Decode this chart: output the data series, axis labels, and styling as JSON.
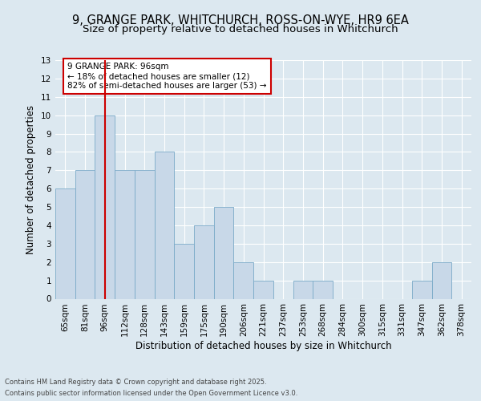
{
  "title_line1": "9, GRANGE PARK, WHITCHURCH, ROSS-ON-WYE, HR9 6EA",
  "title_line2": "Size of property relative to detached houses in Whitchurch",
  "xlabel": "Distribution of detached houses by size in Whitchurch",
  "ylabel": "Number of detached properties",
  "categories": [
    "65sqm",
    "81sqm",
    "96sqm",
    "112sqm",
    "128sqm",
    "143sqm",
    "159sqm",
    "175sqm",
    "190sqm",
    "206sqm",
    "221sqm",
    "237sqm",
    "253sqm",
    "268sqm",
    "284sqm",
    "300sqm",
    "315sqm",
    "331sqm",
    "347sqm",
    "362sqm",
    "378sqm"
  ],
  "values": [
    6,
    7,
    10,
    7,
    7,
    8,
    3,
    4,
    5,
    2,
    1,
    0,
    1,
    1,
    0,
    0,
    0,
    0,
    1,
    2,
    0
  ],
  "bar_color": "#c8d8e8",
  "bar_edge_color": "#7aaac8",
  "highlight_index": 2,
  "red_line_color": "#cc0000",
  "annotation_text": "9 GRANGE PARK: 96sqm\n← 18% of detached houses are smaller (12)\n82% of semi-detached houses are larger (53) →",
  "annotation_box_color": "#cc0000",
  "ylim": [
    0,
    13
  ],
  "yticks": [
    0,
    1,
    2,
    3,
    4,
    5,
    6,
    7,
    8,
    9,
    10,
    11,
    12,
    13
  ],
  "background_color": "#dce8f0",
  "grid_color": "#ffffff",
  "fig_background_color": "#dce8f0",
  "footer_line1": "Contains HM Land Registry data © Crown copyright and database right 2025.",
  "footer_line2": "Contains public sector information licensed under the Open Government Licence v3.0.",
  "title_fontsize": 10.5,
  "subtitle_fontsize": 9.5,
  "axis_label_fontsize": 8.5,
  "tick_fontsize": 7.5,
  "annotation_fontsize": 7.5,
  "footer_fontsize": 6.0
}
